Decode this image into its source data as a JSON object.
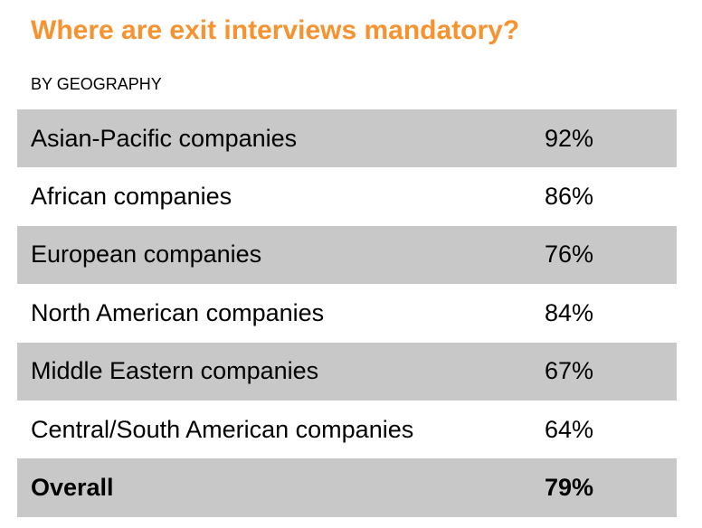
{
  "title": "Where are exit interviews mandatory?",
  "subtitle": "BY GEOGRAPHY",
  "colors": {
    "title": "#F7922F",
    "shaded_row": "#C8C8C8",
    "text": "#000000"
  },
  "chart_data": {
    "type": "table",
    "title": "Where are exit interviews mandatory?",
    "subtitle": "BY GEOGRAPHY",
    "rows": [
      {
        "label": "Asian-Pacific companies",
        "value": "92%",
        "shaded": true,
        "total": false
      },
      {
        "label": "African companies",
        "value": "86%",
        "shaded": false,
        "total": false
      },
      {
        "label": "European companies",
        "value": "76%",
        "shaded": true,
        "total": false
      },
      {
        "label": "North American companies",
        "value": "84%",
        "shaded": false,
        "total": false
      },
      {
        "label": "Middle Eastern companies",
        "value": "67%",
        "shaded": true,
        "total": false
      },
      {
        "label": "Central/South American companies",
        "value": "64%",
        "shaded": false,
        "total": false
      },
      {
        "label": "Overall",
        "value": "79%",
        "shaded": true,
        "total": true
      }
    ]
  }
}
